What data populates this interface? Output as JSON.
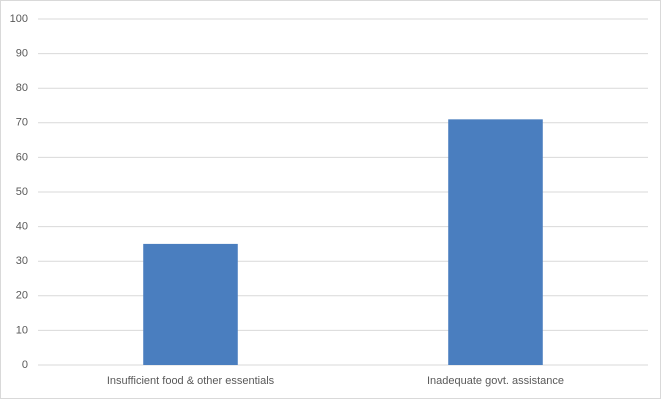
{
  "chart_data": {
    "type": "bar",
    "categories": [
      "Insufficient food & other essentials",
      "Inadequate govt. assistance"
    ],
    "values": [
      35,
      71
    ],
    "color": "#4a7ebf",
    "ylim": [
      0,
      100
    ],
    "yticks": [
      0,
      10,
      20,
      30,
      40,
      50,
      60,
      70,
      80,
      90,
      100
    ],
    "grid": true
  }
}
